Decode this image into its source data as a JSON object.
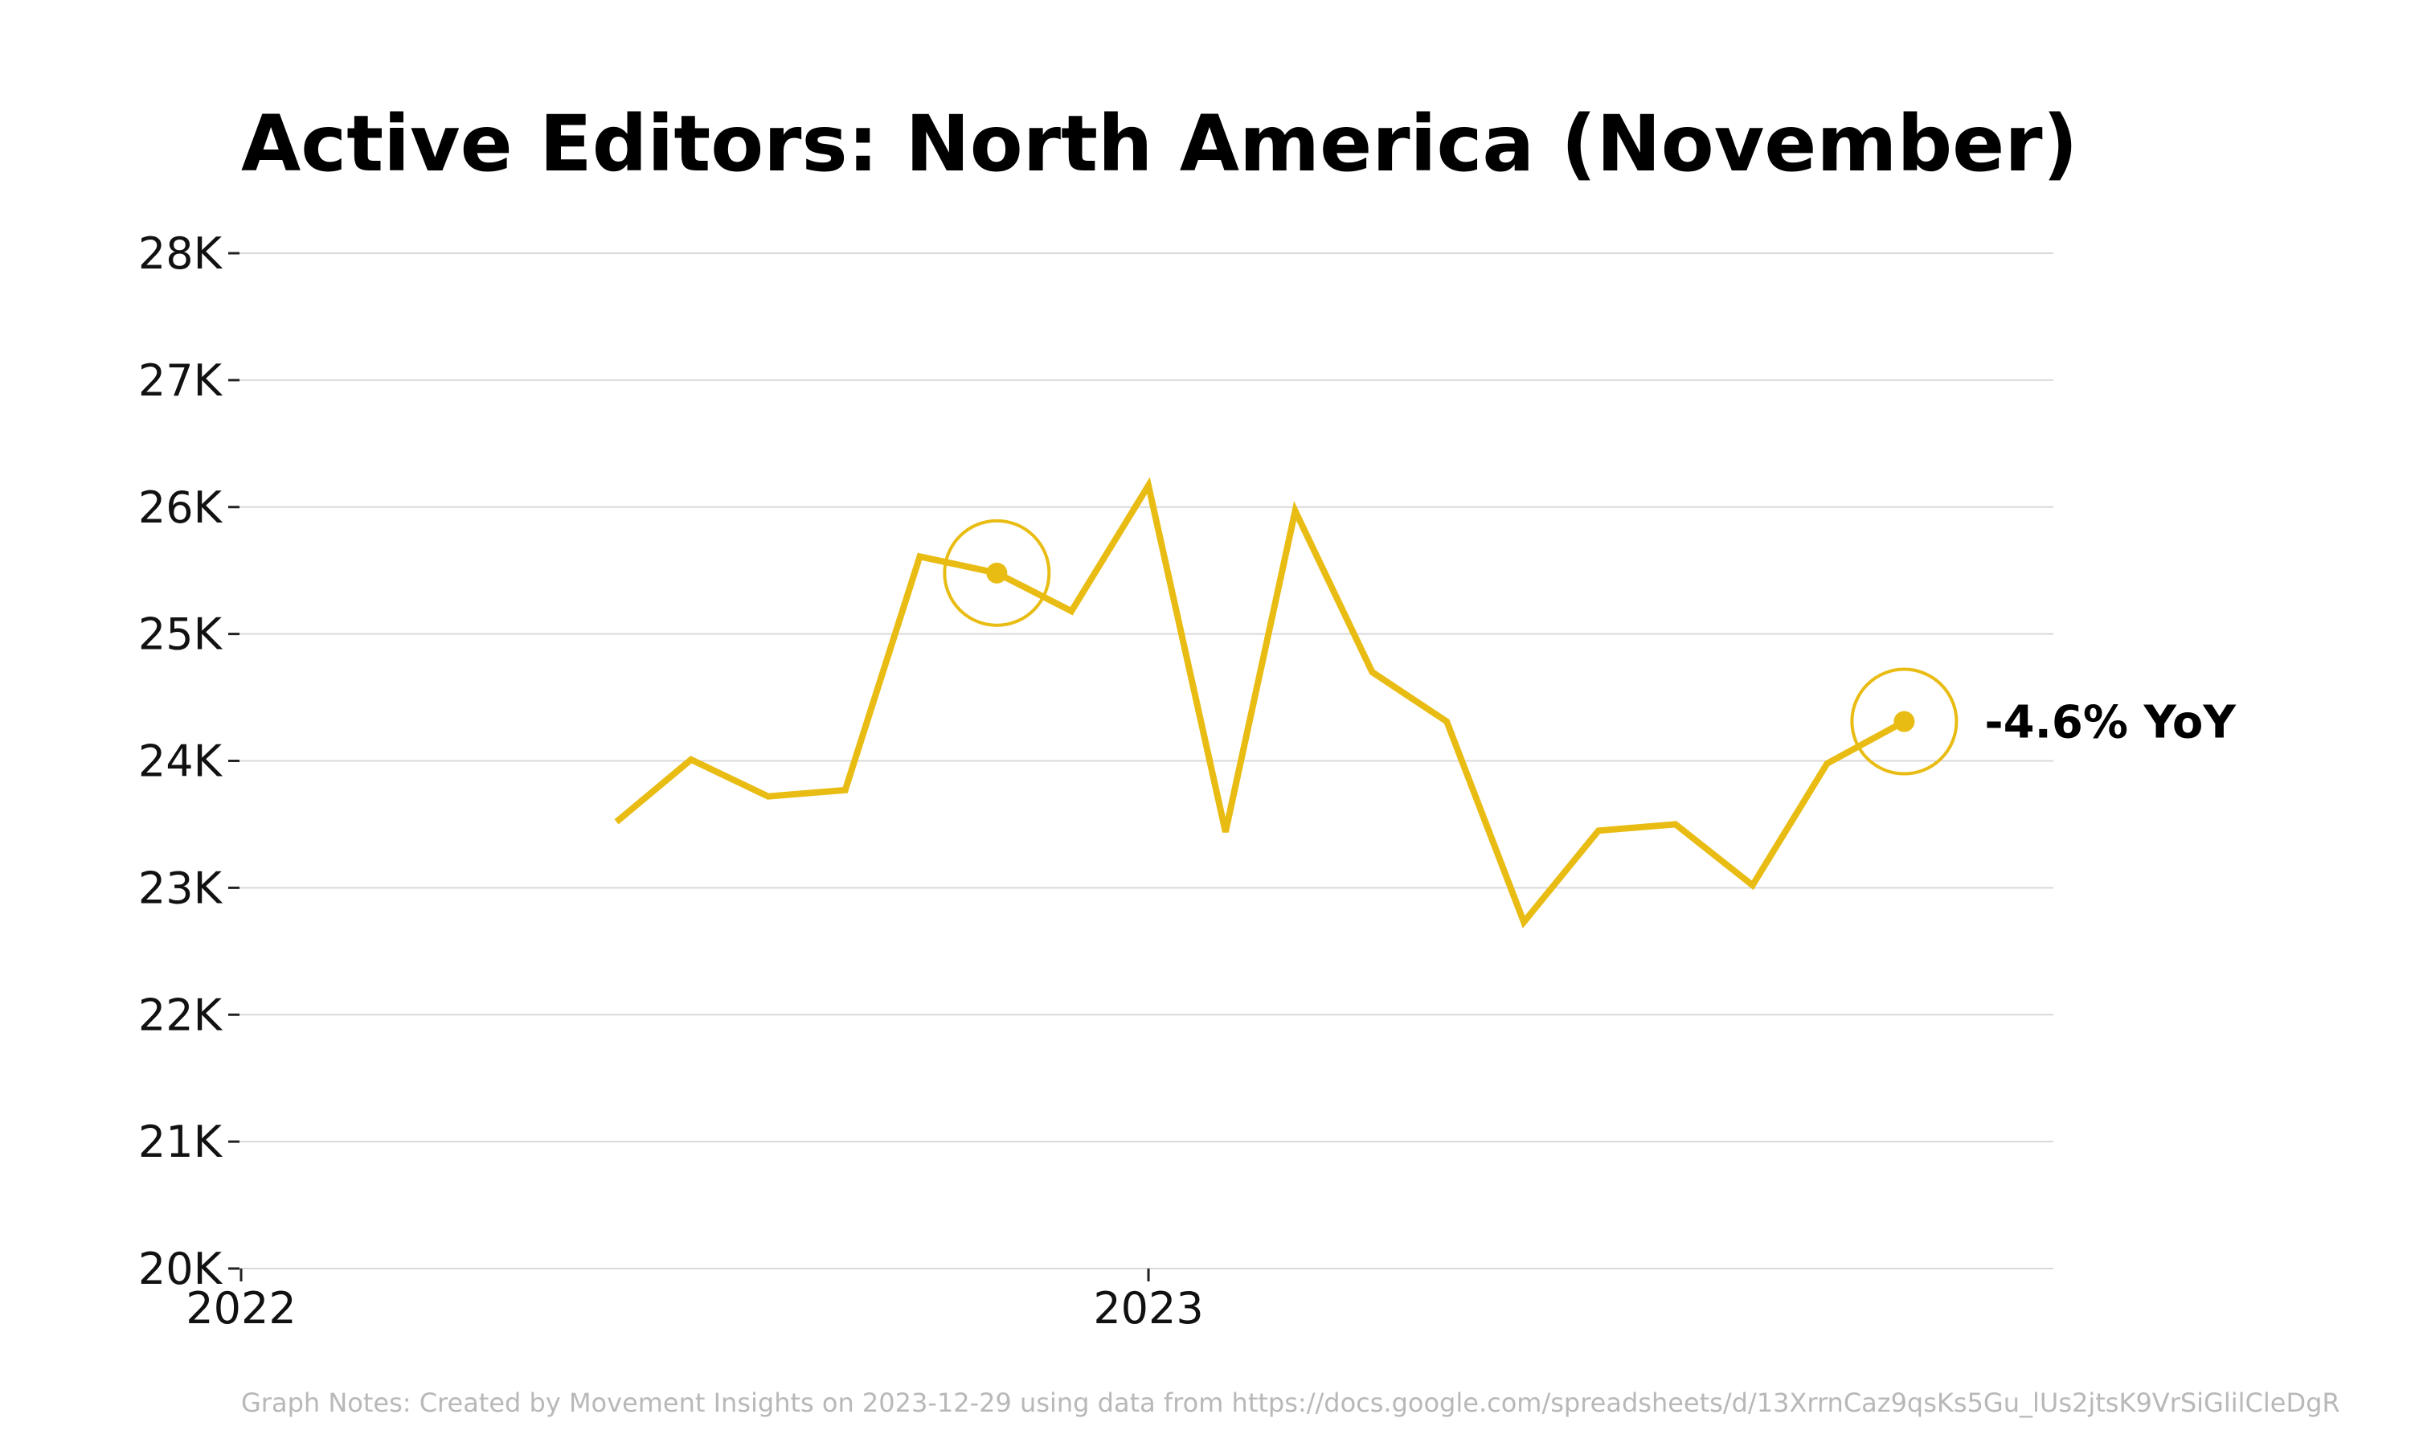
{
  "colors": {
    "series": "#E9BC13",
    "title": "#000000",
    "tick_text": "#111111",
    "grid": "#d9d9d9",
    "footnote": "#b8b8b8"
  },
  "chart_data": {
    "type": "line",
    "title": "Active Editors: North America (November)",
    "xlabel": "",
    "ylabel": "",
    "x_axis_kind": "date",
    "xlim": [
      "2022-01-01",
      "2023-12-31"
    ],
    "ylim": [
      20000,
      28000
    ],
    "grid": true,
    "y_ticks": [
      {
        "value": 20000,
        "label": "20K"
      },
      {
        "value": 21000,
        "label": "21K"
      },
      {
        "value": 22000,
        "label": "22K"
      },
      {
        "value": 23000,
        "label": "23K"
      },
      {
        "value": 24000,
        "label": "24K"
      },
      {
        "value": 25000,
        "label": "25K"
      },
      {
        "value": 26000,
        "label": "26K"
      },
      {
        "value": 27000,
        "label": "27K"
      },
      {
        "value": 28000,
        "label": "28K"
      }
    ],
    "x_ticks": [
      {
        "value": "2022-01-01",
        "label": "2022"
      },
      {
        "value": "2023-01-01",
        "label": "2023"
      }
    ],
    "series": [
      {
        "points": [
          {
            "x": "2022-06-01",
            "y": 23520
          },
          {
            "x": "2022-07-01",
            "y": 24010
          },
          {
            "x": "2022-08-01",
            "y": 23720
          },
          {
            "x": "2022-09-01",
            "y": 23770
          },
          {
            "x": "2022-10-01",
            "y": 25610
          },
          {
            "x": "2022-11-01",
            "y": 25480
          },
          {
            "x": "2022-12-01",
            "y": 25180
          },
          {
            "x": "2023-01-01",
            "y": 26170
          },
          {
            "x": "2023-02-01",
            "y": 23440
          },
          {
            "x": "2023-03-01",
            "y": 25970
          },
          {
            "x": "2023-04-01",
            "y": 24700
          },
          {
            "x": "2023-05-01",
            "y": 24310
          },
          {
            "x": "2023-06-01",
            "y": 22730
          },
          {
            "x": "2023-07-01",
            "y": 23450
          },
          {
            "x": "2023-08-01",
            "y": 23500
          },
          {
            "x": "2023-09-01",
            "y": 23020
          },
          {
            "x": "2023-10-01",
            "y": 23980
          },
          {
            "x": "2023-11-01",
            "y": 24310
          }
        ]
      }
    ],
    "highlights": [
      {
        "x": "2022-11-01",
        "y": 25480,
        "label": ""
      },
      {
        "x": "2023-11-01",
        "y": 24310,
        "label": "-4.6% YoY"
      }
    ]
  },
  "footnote": "Graph Notes: Created by Movement Insights  on 2023-12-29 using data from https://docs.google.com/spreadsheets/d/13XrrnCaz9qsKs5Gu_lUs2jtsK9VrSiGlilCleDgR"
}
